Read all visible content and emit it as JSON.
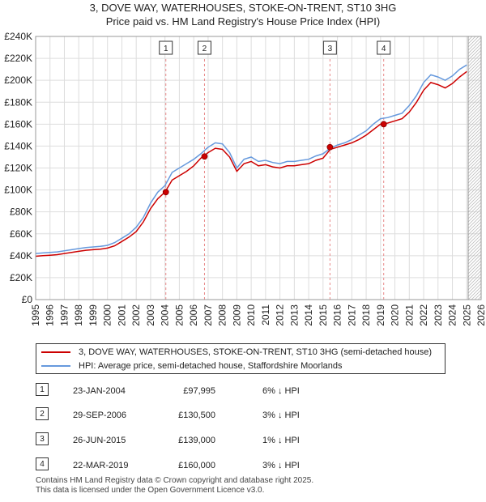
{
  "title_line1": "3, DOVE WAY, WATERHOUSES, STOKE-ON-TRENT, ST10 3HG",
  "title_line2": "Price paid vs. HM Land Registry's House Price Index (HPI)",
  "legend": {
    "property_label": "3, DOVE WAY, WATERHOUSES, STOKE-ON-TRENT, ST10 3HG (semi-detached house)",
    "hpi_label": "HPI: Average price, semi-detached house, Staffordshire Moorlands"
  },
  "colors": {
    "property": "#cc0000",
    "hpi": "#6699dd",
    "marker_line": "#e88888",
    "grid": "#dddddd",
    "future_hatch": "#bbbbbb"
  },
  "sales": [
    {
      "num": "1",
      "date": "23-JAN-2004",
      "price": "£97,995",
      "hpi": "6% ↓ HPI"
    },
    {
      "num": "2",
      "date": "29-SEP-2006",
      "price": "£130,500",
      "hpi": "3% ↓ HPI"
    },
    {
      "num": "3",
      "date": "26-JUN-2015",
      "price": "£139,000",
      "hpi": "1% ↓ HPI"
    },
    {
      "num": "4",
      "date": "22-MAR-2019",
      "price": "£160,000",
      "hpi": "3% ↓ HPI"
    }
  ],
  "footer_line1": "Contains HM Land Registry data © Crown copyright and database right 2025.",
  "footer_line2": "This data is licensed under the Open Government Licence v3.0.",
  "chart_data": {
    "type": "line",
    "title": "3, DOVE WAY, WATERHOUSES, STOKE-ON-TRENT, ST10 3HG",
    "subtitle": "Price paid vs. HM Land Registry's House Price Index (HPI)",
    "xlabel": "",
    "ylabel": "",
    "xlim": [
      1995,
      2026
    ],
    "ylim": [
      0,
      240000
    ],
    "x_ticks": [
      1995,
      1996,
      1997,
      1998,
      1999,
      2000,
      2001,
      2002,
      2003,
      2004,
      2005,
      2006,
      2007,
      2008,
      2009,
      2010,
      2011,
      2012,
      2013,
      2014,
      2015,
      2016,
      2017,
      2018,
      2019,
      2020,
      2021,
      2022,
      2023,
      2024,
      2025,
      2026
    ],
    "y_ticks": [
      {
        "value": 0,
        "label": "£0"
      },
      {
        "value": 20000,
        "label": "£20K"
      },
      {
        "value": 40000,
        "label": "£40K"
      },
      {
        "value": 60000,
        "label": "£60K"
      },
      {
        "value": 80000,
        "label": "£80K"
      },
      {
        "value": 100000,
        "label": "£100K"
      },
      {
        "value": 120000,
        "label": "£120K"
      },
      {
        "value": 140000,
        "label": "£140K"
      },
      {
        "value": 160000,
        "label": "£160K"
      },
      {
        "value": 180000,
        "label": "£180K"
      },
      {
        "value": 200000,
        "label": "£200K"
      },
      {
        "value": 220000,
        "label": "£220K"
      },
      {
        "value": 240000,
        "label": "£240K"
      }
    ],
    "grid": true,
    "future_shading_from": 2025.1,
    "series": [
      {
        "name": "HPI: Average price, semi-detached house, Staffordshire Moorlands",
        "x": [
          1995.0,
          1995.5,
          1996.0,
          1996.5,
          1997.0,
          1997.5,
          1998.0,
          1998.5,
          1999.0,
          1999.5,
          2000.0,
          2000.5,
          2001.0,
          2001.5,
          2002.0,
          2002.5,
          2003.0,
          2003.5,
          2004.0,
          2004.5,
          2005.0,
          2005.5,
          2006.0,
          2006.5,
          2007.0,
          2007.5,
          2008.0,
          2008.5,
          2009.0,
          2009.5,
          2010.0,
          2010.5,
          2011.0,
          2011.5,
          2012.0,
          2012.5,
          2013.0,
          2013.5,
          2014.0,
          2014.5,
          2015.0,
          2015.5,
          2016.0,
          2016.5,
          2017.0,
          2017.5,
          2018.0,
          2018.5,
          2019.0,
          2019.5,
          2020.0,
          2020.5,
          2021.0,
          2021.5,
          2022.0,
          2022.5,
          2023.0,
          2023.5,
          2024.0,
          2024.5,
          2025.0
        ],
        "y": [
          42000,
          42500,
          43000,
          43500,
          44500,
          45500,
          46500,
          47500,
          48000,
          48500,
          49500,
          52000,
          56000,
          60000,
          66000,
          75000,
          88000,
          98000,
          104000,
          116000,
          120000,
          124000,
          128000,
          133000,
          139000,
          143000,
          142000,
          134000,
          120000,
          128000,
          130000,
          126000,
          127000,
          125000,
          124000,
          126000,
          126000,
          127000,
          128000,
          131000,
          133000,
          138000,
          141000,
          143000,
          146000,
          150000,
          154000,
          160000,
          165000,
          166000,
          168000,
          170000,
          177000,
          186000,
          198000,
          205000,
          203000,
          200000,
          204000,
          210000,
          214000
        ]
      },
      {
        "name": "3, DOVE WAY, WATERHOUSES, STOKE-ON-TRENT, ST10 3HG (semi-detached house)",
        "x": [
          1995.0,
          1995.5,
          1996.0,
          1996.5,
          1997.0,
          1997.5,
          1998.0,
          1998.5,
          1999.0,
          1999.5,
          2000.0,
          2000.5,
          2001.0,
          2001.5,
          2002.0,
          2002.5,
          2003.0,
          2003.5,
          2004.0,
          2004.5,
          2005.0,
          2005.5,
          2006.0,
          2006.5,
          2007.0,
          2007.5,
          2008.0,
          2008.5,
          2009.0,
          2009.5,
          2010.0,
          2010.5,
          2011.0,
          2011.5,
          2012.0,
          2012.5,
          2013.0,
          2013.5,
          2014.0,
          2014.5,
          2015.0,
          2015.5,
          2016.0,
          2016.5,
          2017.0,
          2017.5,
          2018.0,
          2018.5,
          2019.0,
          2019.5,
          2020.0,
          2020.5,
          2021.0,
          2021.5,
          2022.0,
          2022.5,
          2023.0,
          2023.5,
          2024.0,
          2024.5,
          2025.0
        ],
        "y": [
          39500,
          40000,
          40500,
          41000,
          42000,
          43000,
          44000,
          45000,
          45500,
          46000,
          47000,
          49000,
          53000,
          57000,
          62000,
          71000,
          83000,
          92000,
          97995,
          109000,
          113000,
          117000,
          122000,
          129000,
          134000,
          138000,
          137000,
          130000,
          117000,
          124000,
          126000,
          122000,
          123000,
          121000,
          120000,
          122000,
          122000,
          123000,
          124000,
          127000,
          129000,
          137000,
          139000,
          141000,
          143000,
          146000,
          150000,
          155000,
          160000,
          161000,
          163000,
          165000,
          171000,
          180000,
          191000,
          198000,
          196000,
          193000,
          197000,
          203000,
          208000
        ]
      }
    ],
    "sale_markers": [
      {
        "num": "1",
        "x": 2004.06,
        "y": 97995
      },
      {
        "num": "2",
        "x": 2006.75,
        "y": 130500
      },
      {
        "num": "3",
        "x": 2015.48,
        "y": 139000
      },
      {
        "num": "4",
        "x": 2019.22,
        "y": 160000
      }
    ]
  }
}
